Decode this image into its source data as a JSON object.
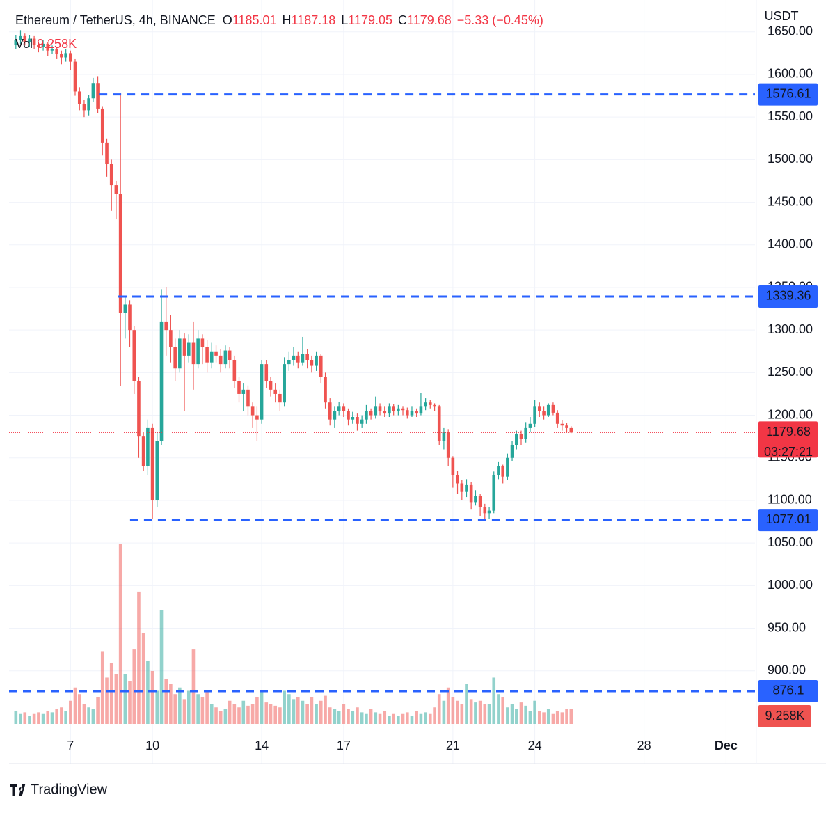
{
  "chart_data": {
    "type": "candlestick",
    "title": "Ethereum / TetherUS, 4h, BINANCE",
    "ohlc_labels": [
      "O",
      "H",
      "L",
      "C"
    ],
    "change": "−5.33 (−0.45%)",
    "volume_name": "Vol",
    "volume_last_label": "9.258K",
    "countdown": "03:27:21",
    "y_axis_title": "USDT",
    "up_color": "#26a69a",
    "down_color": "#ef5350",
    "level_color": "#2962ff",
    "grid": true,
    "xlim": [
      4.75,
      32.06
    ],
    "xticks": [
      7,
      10,
      14,
      17,
      21,
      24,
      28,
      {
        "value": 31,
        "label": "Dec"
      }
    ],
    "ylim": [
      837.7,
      1687.4
    ],
    "yticks": [
      {
        "value": 1050,
        "label": "1050.00"
      },
      {
        "value": 1100,
        "label": "1100.00"
      },
      {
        "value": 1150,
        "label": "1150.00"
      },
      {
        "value": 1200,
        "label": "1200.00"
      },
      {
        "value": 1250,
        "label": "1250.00"
      },
      {
        "value": 1300,
        "label": "1300.00"
      },
      {
        "value": 1350,
        "label": "1350.00"
      },
      {
        "value": 1400,
        "label": "1400.00"
      },
      {
        "value": 1450,
        "label": "1450.00"
      },
      {
        "value": 1500,
        "label": "1500.00"
      },
      {
        "value": 1550,
        "label": "1550.00"
      },
      {
        "value": 1600,
        "label": "1600.00"
      },
      {
        "value": 1650,
        "label": "1650.00"
      },
      {
        "value": 900,
        "label": "900.00"
      },
      {
        "value": 950,
        "label": "950.00"
      },
      {
        "value": 1000,
        "label": "1000.00"
      }
    ],
    "y2lim": [
      0,
      437.7
    ],
    "levels": [
      {
        "value": 1576.61,
        "start": 8.04
      },
      {
        "value": 1339.36,
        "start": 8.75
      },
      {
        "value": 1077.01,
        "start": 9.18
      },
      {
        "value": 876.1,
        "start": 4.75
      }
    ],
    "x": [
      5,
      5.17,
      5.33,
      5.5,
      5.67,
      5.83,
      6,
      6.17,
      6.33,
      6.5,
      6.67,
      6.83,
      7,
      7.17,
      7.33,
      7.5,
      7.67,
      7.83,
      8,
      8.17,
      8.33,
      8.5,
      8.67,
      8.83,
      9,
      9.17,
      9.33,
      9.5,
      9.67,
      9.83,
      10,
      10.17,
      10.33,
      10.5,
      10.67,
      10.83,
      11,
      11.17,
      11.33,
      11.5,
      11.67,
      11.83,
      12,
      12.17,
      12.33,
      12.5,
      12.67,
      12.83,
      13,
      13.17,
      13.33,
      13.5,
      13.67,
      13.83,
      14,
      14.17,
      14.33,
      14.5,
      14.67,
      14.83,
      15,
      15.17,
      15.33,
      15.5,
      15.67,
      15.83,
      16,
      16.17,
      16.33,
      16.5,
      16.67,
      16.83,
      17,
      17.17,
      17.33,
      17.5,
      17.67,
      17.83,
      18,
      18.17,
      18.33,
      18.5,
      18.67,
      18.83,
      19,
      19.17,
      19.33,
      19.5,
      19.67,
      19.83,
      20,
      20.17,
      20.33,
      20.5,
      20.67,
      20.83,
      21,
      21.17,
      21.33,
      21.5,
      21.67,
      21.83,
      22,
      22.17,
      22.33,
      22.5,
      22.67,
      22.83,
      23,
      23.17,
      23.33,
      23.5,
      23.67,
      23.83,
      24,
      24.17,
      24.33,
      24.5,
      24.67,
      24.83,
      25,
      25.17,
      25.33
    ],
    "open": [
      1635,
      1640,
      1645,
      1638,
      1642,
      1635,
      1632,
      1636,
      1628,
      1630,
      1624,
      1620,
      1625,
      1615,
      1580,
      1565,
      1558,
      1572,
      1590,
      1560,
      1520,
      1495,
      1470,
      1460,
      1320,
      1330,
      1300,
      1240,
      1175,
      1140,
      1185,
      1100,
      1170,
      1310,
      1300,
      1280,
      1255,
      1290,
      1270,
      1285,
      1260,
      1290,
      1280,
      1262,
      1275,
      1270,
      1260,
      1276,
      1265,
      1240,
      1225,
      1230,
      1210,
      1200,
      1195,
      1260,
      1240,
      1230,
      1225,
      1215,
      1260,
      1265,
      1270,
      1262,
      1272,
      1265,
      1258,
      1270,
      1245,
      1215,
      1195,
      1205,
      1210,
      1205,
      1195,
      1198,
      1190,
      1195,
      1205,
      1200,
      1210,
      1205,
      1202,
      1210,
      1205,
      1208,
      1206,
      1200,
      1205,
      1202,
      1210,
      1215,
      1212,
      1210,
      1170,
      1180,
      1150,
      1130,
      1120,
      1110,
      1118,
      1098,
      1105,
      1092,
      1085,
      1088,
      1130,
      1140,
      1128,
      1150,
      1165,
      1178,
      1172,
      1185,
      1190,
      1210,
      1205,
      1200,
      1212,
      1203,
      1190,
      1188,
      1185.01
    ],
    "high": [
      1646,
      1652,
      1648,
      1646,
      1645,
      1638,
      1640,
      1638,
      1634,
      1632,
      1628,
      1630,
      1628,
      1618,
      1585,
      1570,
      1576,
      1596,
      1598,
      1562,
      1525,
      1500,
      1475,
      1578,
      1340,
      1335,
      1305,
      1245,
      1180,
      1195,
      1190,
      1180,
      1348,
      1350,
      1318,
      1290,
      1300,
      1296,
      1295,
      1310,
      1300,
      1295,
      1288,
      1285,
      1282,
      1278,
      1282,
      1280,
      1270,
      1245,
      1238,
      1235,
      1215,
      1210,
      1265,
      1265,
      1245,
      1238,
      1230,
      1268,
      1275,
      1280,
      1275,
      1292,
      1278,
      1270,
      1275,
      1272,
      1250,
      1220,
      1210,
      1216,
      1214,
      1208,
      1204,
      1202,
      1200,
      1212,
      1208,
      1222,
      1214,
      1210,
      1214,
      1213,
      1212,
      1210,
      1209,
      1210,
      1208,
      1226,
      1220,
      1218,
      1214,
      1212,
      1185,
      1183,
      1152,
      1135,
      1124,
      1125,
      1122,
      1112,
      1108,
      1096,
      1092,
      1134,
      1145,
      1142,
      1155,
      1170,
      1182,
      1182,
      1192,
      1198,
      1218,
      1215,
      1210,
      1214,
      1215,
      1206,
      1194,
      1191,
      1187.18
    ],
    "low": [
      1630,
      1636,
      1634,
      1632,
      1630,
      1626,
      1628,
      1622,
      1624,
      1618,
      1612,
      1615,
      1605,
      1575,
      1558,
      1550,
      1552,
      1568,
      1555,
      1505,
      1480,
      1440,
      1430,
      1234,
      1290,
      1280,
      1225,
      1150,
      1135,
      1130,
      1078,
      1092,
      1165,
      1270,
      1262,
      1240,
      1250,
      1205,
      1262,
      1230,
      1255,
      1260,
      1250,
      1255,
      1262,
      1250,
      1255,
      1255,
      1232,
      1215,
      1205,
      1200,
      1185,
      1170,
      1190,
      1232,
      1222,
      1215,
      1205,
      1210,
      1252,
      1258,
      1255,
      1258,
      1255,
      1250,
      1252,
      1238,
      1208,
      1188,
      1185,
      1200,
      1198,
      1188,
      1190,
      1182,
      1185,
      1190,
      1195,
      1196,
      1200,
      1198,
      1198,
      1200,
      1200,
      1200,
      1196,
      1198,
      1198,
      1200,
      1206,
      1208,
      1205,
      1165,
      1160,
      1140,
      1115,
      1108,
      1100,
      1104,
      1090,
      1094,
      1082,
      1077.01,
      1078,
      1085,
      1125,
      1120,
      1124,
      1146,
      1160,
      1165,
      1168,
      1180,
      1186,
      1198,
      1195,
      1198,
      1200,
      1185,
      1182,
      1180,
      1179.05
    ],
    "close": [
      1640,
      1645,
      1638,
      1642,
      1635,
      1632,
      1636,
      1628,
      1630,
      1624,
      1620,
      1625,
      1615,
      1580,
      1565,
      1558,
      1572,
      1590,
      1560,
      1520,
      1495,
      1470,
      1460,
      1320,
      1330,
      1300,
      1240,
      1175,
      1140,
      1185,
      1100,
      1170,
      1310,
      1300,
      1280,
      1255,
      1290,
      1270,
      1285,
      1260,
      1290,
      1280,
      1262,
      1275,
      1270,
      1260,
      1276,
      1265,
      1240,
      1225,
      1230,
      1210,
      1200,
      1195,
      1260,
      1240,
      1230,
      1225,
      1215,
      1260,
      1265,
      1270,
      1262,
      1272,
      1265,
      1258,
      1270,
      1245,
      1215,
      1195,
      1205,
      1210,
      1205,
      1195,
      1198,
      1190,
      1195,
      1205,
      1200,
      1210,
      1205,
      1202,
      1210,
      1205,
      1208,
      1206,
      1200,
      1205,
      1202,
      1210,
      1215,
      1212,
      1210,
      1170,
      1180,
      1150,
      1130,
      1120,
      1110,
      1118,
      1098,
      1105,
      1092,
      1085,
      1088,
      1130,
      1140,
      1128,
      1150,
      1165,
      1178,
      1172,
      1185,
      1190,
      1210,
      1205,
      1200,
      1212,
      1203,
      1190,
      1188,
      1185.01,
      1179.68
    ],
    "volume": [
      8,
      6,
      7,
      5,
      6,
      7,
      6,
      8,
      7,
      9,
      10,
      8,
      14,
      22,
      18,
      12,
      10,
      9,
      16,
      44,
      28,
      37,
      30,
      109,
      30,
      26,
      45,
      80,
      55,
      38,
      32,
      20,
      69,
      27,
      24,
      18,
      22,
      15,
      20,
      45,
      18,
      16,
      20,
      12,
      10,
      8,
      9,
      14,
      12,
      10,
      14,
      11,
      12,
      16,
      20,
      13,
      12,
      11,
      10,
      20,
      18,
      15,
      16,
      14,
      12,
      16,
      12,
      14,
      17,
      10,
      9,
      8,
      12,
      9,
      8,
      10,
      7,
      6,
      9,
      7,
      6,
      8,
      5,
      6,
      5,
      6,
      7,
      5,
      8,
      6,
      7,
      6,
      10,
      18,
      14,
      22,
      16,
      14,
      12,
      24,
      15,
      13,
      14,
      12,
      12,
      28,
      18,
      16,
      10,
      12,
      9,
      13,
      11,
      8,
      14,
      8,
      7,
      9,
      6,
      8,
      7,
      9,
      9.258
    ]
  },
  "brand": "TradingView"
}
